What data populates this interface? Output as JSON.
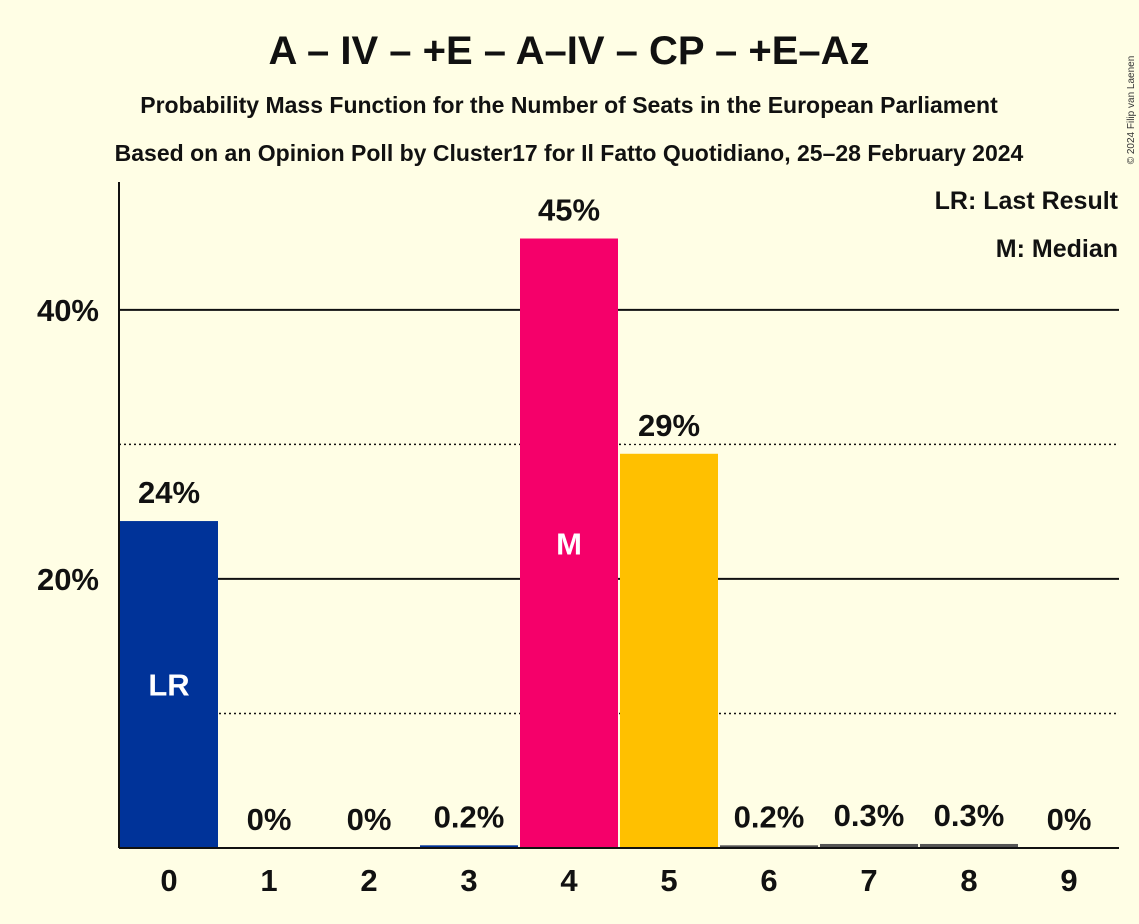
{
  "chart_data": {
    "type": "bar",
    "title": "A – IV – +E – A–IV – CP – +E–Az",
    "subtitle": "Probability Mass Function for the Number of Seats in the European Parliament",
    "subtitle2": "Based on an Opinion Poll by Cluster17 for Il Fatto Quotidiano, 25–28 February 2024",
    "copyright": "© 2024 Filip van Laenen",
    "categories": [
      "0",
      "1",
      "2",
      "3",
      "4",
      "5",
      "6",
      "7",
      "8",
      "9"
    ],
    "values": [
      24.3,
      0.0,
      0.0,
      0.2,
      45.3,
      29.3,
      0.2,
      0.3,
      0.3,
      0.0
    ],
    "data_labels": [
      "24%",
      "0%",
      "0%",
      "0.2%",
      "45%",
      "29%",
      "0.2%",
      "0.3%",
      "0.3%",
      "0%"
    ],
    "bar_colors": [
      "#003399",
      "#003399",
      "#003399",
      "#003399",
      "#F5006A",
      "#FFC000",
      "#555555",
      "#555555",
      "#555555",
      "#555555"
    ],
    "last_result_index": 0,
    "median_index": 4,
    "last_result_marker": "LR",
    "median_marker": "M",
    "y_ticks": [
      {
        "value": 20,
        "label": "20%"
      },
      {
        "value": 40,
        "label": "40%"
      }
    ],
    "minor_gridlines": [
      10,
      30
    ],
    "ylim": [
      0,
      49.5
    ],
    "legend": {
      "position": "top-right",
      "items": [
        "LR: Last Result",
        "M: Median"
      ]
    },
    "background_color": "#FFFEE5"
  }
}
